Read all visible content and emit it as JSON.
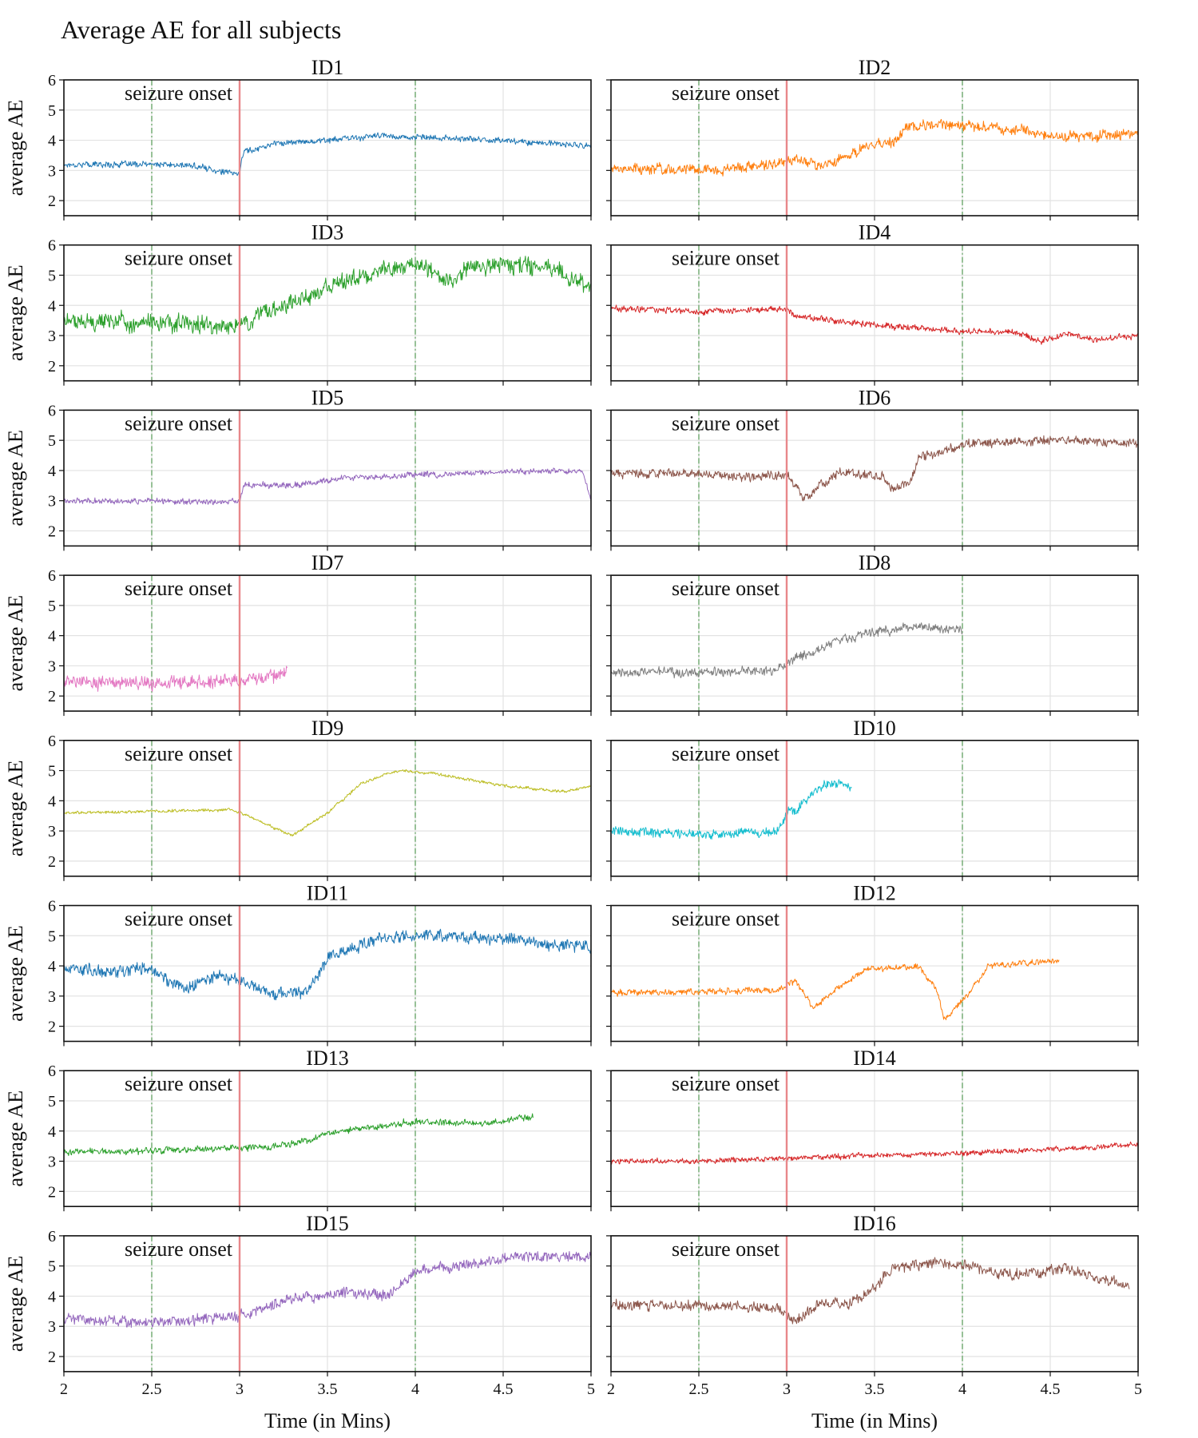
{
  "figure": {
    "title": "Average AE for all subjects",
    "shared_x_label": "Time (in Mins)",
    "shared_y_label": "average AE",
    "onset_label": "seizure onset"
  },
  "colors": {
    "onset_line": "#e8878a",
    "window_line": "#7fb37f",
    "onset_text": "#ff0000",
    "grid": "#e2e2e2"
  },
  "chart_data": {
    "type": "line",
    "layout": "8 rows x 2 columns, shared x and y axes",
    "xlim": [
      2,
      5
    ],
    "ylim": [
      1.5,
      6
    ],
    "x_ticks": [
      "2",
      "2.5",
      "3",
      "3.5",
      "4",
      "4.5",
      "5"
    ],
    "y_ticks": [
      "2",
      "3",
      "4",
      "5",
      "6"
    ],
    "onset_x": 3,
    "window_lines_x": [
      2.5,
      4
    ],
    "panels": [
      {
        "name": "ID1",
        "color": "#1f77b4",
        "x_end": 5,
        "noise": 0.12,
        "points": [
          [
            2,
            3.2
          ],
          [
            2.5,
            3.2
          ],
          [
            2.75,
            3.15
          ],
          [
            2.95,
            2.9
          ],
          [
            3.0,
            2.9
          ],
          [
            3.02,
            3.6
          ],
          [
            3.2,
            3.9
          ],
          [
            3.5,
            4.0
          ],
          [
            3.8,
            4.15
          ],
          [
            4.0,
            4.1
          ],
          [
            4.5,
            4.0
          ],
          [
            5.0,
            3.8
          ]
        ]
      },
      {
        "name": "ID2",
        "color": "#ff7f0e",
        "x_end": 5,
        "noise": 0.22,
        "points": [
          [
            2,
            3.1
          ],
          [
            2.5,
            3.0
          ],
          [
            2.95,
            3.2
          ],
          [
            3.05,
            3.4
          ],
          [
            3.2,
            3.15
          ],
          [
            3.35,
            3.5
          ],
          [
            3.45,
            3.8
          ],
          [
            3.6,
            3.9
          ],
          [
            3.7,
            4.5
          ],
          [
            4.0,
            4.5
          ],
          [
            4.35,
            4.35
          ],
          [
            4.5,
            4.1
          ],
          [
            5.0,
            4.2
          ]
        ]
      },
      {
        "name": "ID3",
        "color": "#2ca02c",
        "x_end": 5,
        "noise": 0.35,
        "points": [
          [
            2,
            3.5
          ],
          [
            2.5,
            3.4
          ],
          [
            3.0,
            3.3
          ],
          [
            3.1,
            3.6
          ],
          [
            3.2,
            3.9
          ],
          [
            3.5,
            4.6
          ],
          [
            3.8,
            5.2
          ],
          [
            4.0,
            5.3
          ],
          [
            4.1,
            5.1
          ],
          [
            4.2,
            4.8
          ],
          [
            4.3,
            5.2
          ],
          [
            4.5,
            5.4
          ],
          [
            4.8,
            5.2
          ],
          [
            5.0,
            4.6
          ]
        ]
      },
      {
        "name": "ID4",
        "color": "#d62728",
        "x_end": 5,
        "noise": 0.12,
        "points": [
          [
            2,
            3.9
          ],
          [
            2.5,
            3.8
          ],
          [
            3.0,
            3.9
          ],
          [
            3.05,
            3.65
          ],
          [
            3.5,
            3.35
          ],
          [
            4.0,
            3.15
          ],
          [
            4.3,
            3.1
          ],
          [
            4.45,
            2.8
          ],
          [
            4.6,
            3.1
          ],
          [
            4.75,
            2.85
          ],
          [
            5.0,
            3.0
          ]
        ]
      },
      {
        "name": "ID5",
        "color": "#9467bd",
        "x_end": 5,
        "noise": 0.12,
        "points": [
          [
            2,
            3.0
          ],
          [
            2.5,
            3.0
          ],
          [
            3.0,
            2.95
          ],
          [
            3.02,
            3.5
          ],
          [
            3.3,
            3.5
          ],
          [
            3.6,
            3.75
          ],
          [
            4.0,
            3.85
          ],
          [
            4.5,
            3.95
          ],
          [
            4.95,
            4.0
          ],
          [
            5.0,
            3.0
          ]
        ]
      },
      {
        "name": "ID6",
        "color": "#8c564b",
        "x_end": 5,
        "noise": 0.18,
        "points": [
          [
            2,
            3.9
          ],
          [
            2.5,
            3.9
          ],
          [
            2.8,
            3.8
          ],
          [
            3.0,
            3.85
          ],
          [
            3.1,
            3.1
          ],
          [
            3.3,
            3.95
          ],
          [
            3.55,
            3.8
          ],
          [
            3.6,
            3.4
          ],
          [
            3.7,
            3.6
          ],
          [
            3.75,
            4.4
          ],
          [
            4.0,
            4.85
          ],
          [
            4.5,
            5.0
          ],
          [
            5.0,
            4.9
          ]
        ]
      },
      {
        "name": "ID7",
        "color": "#e377c2",
        "x_end": 3.27,
        "noise": 0.28,
        "points": [
          [
            2,
            2.5
          ],
          [
            2.5,
            2.4
          ],
          [
            3.0,
            2.5
          ],
          [
            3.25,
            2.7
          ],
          [
            3.27,
            2.9
          ]
        ]
      },
      {
        "name": "ID8",
        "color": "#7f7f7f",
        "x_end": 4.0,
        "noise": 0.18,
        "points": [
          [
            2,
            2.75
          ],
          [
            2.5,
            2.8
          ],
          [
            2.95,
            2.85
          ],
          [
            3.05,
            3.3
          ],
          [
            3.15,
            3.4
          ],
          [
            3.25,
            3.8
          ],
          [
            3.5,
            4.1
          ],
          [
            3.7,
            4.3
          ],
          [
            4.0,
            4.2
          ]
        ]
      },
      {
        "name": "ID9",
        "color": "#bcbd22",
        "x_end": 5,
        "noise": 0.06,
        "points": [
          [
            2,
            3.6
          ],
          [
            2.5,
            3.65
          ],
          [
            2.95,
            3.7
          ],
          [
            3.05,
            3.5
          ],
          [
            3.2,
            3.1
          ],
          [
            3.3,
            2.85
          ],
          [
            3.5,
            3.6
          ],
          [
            3.7,
            4.6
          ],
          [
            3.9,
            5.0
          ],
          [
            4.1,
            4.9
          ],
          [
            4.5,
            4.5
          ],
          [
            4.85,
            4.3
          ],
          [
            5.0,
            4.5
          ]
        ]
      },
      {
        "name": "ID10",
        "color": "#17becf",
        "x_end": 3.37,
        "noise": 0.18,
        "points": [
          [
            2,
            3.0
          ],
          [
            2.5,
            2.9
          ],
          [
            2.95,
            2.95
          ],
          [
            3.02,
            3.8
          ],
          [
            3.05,
            3.6
          ],
          [
            3.1,
            4.0
          ],
          [
            3.2,
            4.5
          ],
          [
            3.3,
            4.6
          ],
          [
            3.37,
            4.4
          ]
        ]
      },
      {
        "name": "ID11",
        "color": "#1f77b4",
        "x_end": 5,
        "noise": 0.25,
        "points": [
          [
            2,
            3.9
          ],
          [
            2.25,
            3.8
          ],
          [
            2.45,
            3.95
          ],
          [
            2.7,
            3.25
          ],
          [
            2.85,
            3.7
          ],
          [
            3.0,
            3.5
          ],
          [
            3.2,
            3.05
          ],
          [
            3.4,
            3.2
          ],
          [
            3.5,
            4.3
          ],
          [
            3.8,
            4.9
          ],
          [
            4.0,
            5.0
          ],
          [
            4.5,
            4.9
          ],
          [
            5.0,
            4.6
          ]
        ]
      },
      {
        "name": "ID12",
        "color": "#ff7f0e",
        "x_end": 4.55,
        "noise": 0.12,
        "points": [
          [
            2,
            3.1
          ],
          [
            2.5,
            3.15
          ],
          [
            2.95,
            3.2
          ],
          [
            3.05,
            3.5
          ],
          [
            3.15,
            2.6
          ],
          [
            3.3,
            3.3
          ],
          [
            3.45,
            3.9
          ],
          [
            3.75,
            3.95
          ],
          [
            3.85,
            3.3
          ],
          [
            3.9,
            2.2
          ],
          [
            4.05,
            3.2
          ],
          [
            4.15,
            4.0
          ],
          [
            4.4,
            4.1
          ],
          [
            4.55,
            4.2
          ]
        ]
      },
      {
        "name": "ID13",
        "color": "#2ca02c",
        "x_end": 4.67,
        "noise": 0.13,
        "points": [
          [
            2,
            3.3
          ],
          [
            2.5,
            3.35
          ],
          [
            3.0,
            3.45
          ],
          [
            3.2,
            3.5
          ],
          [
            3.4,
            3.7
          ],
          [
            3.5,
            3.95
          ],
          [
            3.7,
            4.1
          ],
          [
            4.0,
            4.3
          ],
          [
            4.4,
            4.25
          ],
          [
            4.67,
            4.5
          ]
        ]
      },
      {
        "name": "ID14",
        "color": "#d62728",
        "x_end": 5,
        "noise": 0.1,
        "points": [
          [
            2,
            3.0
          ],
          [
            2.5,
            3.0
          ],
          [
            3.0,
            3.1
          ],
          [
            3.5,
            3.2
          ],
          [
            4.0,
            3.25
          ],
          [
            4.5,
            3.4
          ],
          [
            5.0,
            3.55
          ]
        ]
      },
      {
        "name": "ID15",
        "color": "#9467bd",
        "x_end": 5,
        "noise": 0.22,
        "points": [
          [
            2,
            3.3
          ],
          [
            2.5,
            3.1
          ],
          [
            3.0,
            3.35
          ],
          [
            3.3,
            3.9
          ],
          [
            3.6,
            4.1
          ],
          [
            3.85,
            4.05
          ],
          [
            4.0,
            4.8
          ],
          [
            4.3,
            5.1
          ],
          [
            4.6,
            5.3
          ],
          [
            5.0,
            5.3
          ]
        ]
      },
      {
        "name": "ID16",
        "color": "#8c564b",
        "x_end": 4.95,
        "noise": 0.22,
        "points": [
          [
            2,
            3.7
          ],
          [
            2.5,
            3.7
          ],
          [
            2.95,
            3.6
          ],
          [
            3.05,
            3.2
          ],
          [
            3.2,
            3.8
          ],
          [
            3.35,
            3.75
          ],
          [
            3.5,
            4.3
          ],
          [
            3.6,
            4.9
          ],
          [
            3.8,
            5.1
          ],
          [
            4.0,
            5.0
          ],
          [
            4.3,
            4.7
          ],
          [
            4.6,
            4.9
          ],
          [
            4.95,
            4.3
          ]
        ]
      }
    ]
  }
}
